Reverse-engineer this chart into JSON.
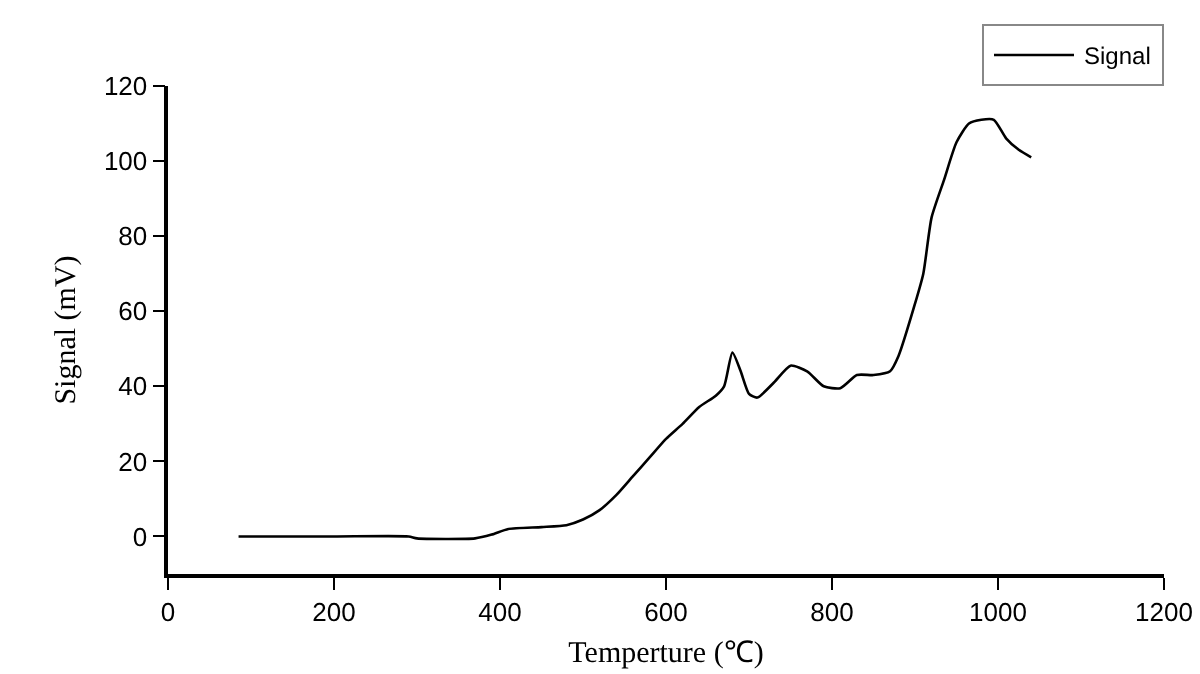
{
  "chart_data": {
    "type": "line",
    "xlabel": "Temperture (℃)",
    "ylabel": "Signal (mV)",
    "legend": "top right",
    "grid": false,
    "marker": "none",
    "line_style": "solid",
    "xlim": [
      0,
      1200
    ],
    "xticks": [
      0,
      200,
      400,
      600,
      800,
      1000,
      1200
    ],
    "ylim": [
      -10,
      120
    ],
    "yticks": [
      0,
      20,
      40,
      60,
      80,
      100,
      120
    ],
    "x": [
      85,
      200,
      290,
      300,
      370,
      390,
      410,
      450,
      480,
      500,
      520,
      540,
      560,
      580,
      600,
      620,
      640,
      660,
      670,
      680,
      690,
      700,
      710,
      730,
      750,
      770,
      790,
      810,
      830,
      850,
      870,
      880,
      900,
      910,
      920,
      935,
      950,
      965,
      980,
      995,
      1010,
      1025,
      1040
    ],
    "series": [
      {
        "name": "Signal",
        "color": "#000000",
        "values": [
          0,
          0,
          0,
          -0.5,
          -0.5,
          0.5,
          2,
          2.5,
          3,
          4.5,
          7,
          11,
          16,
          21,
          26,
          30,
          34.5,
          37.5,
          40,
          49,
          44,
          38,
          37,
          41,
          45.5,
          44,
          40,
          39.5,
          43,
          43,
          44,
          48,
          62,
          70,
          85,
          95,
          105,
          110,
          111,
          111,
          106,
          103,
          101
        ]
      }
    ]
  }
}
